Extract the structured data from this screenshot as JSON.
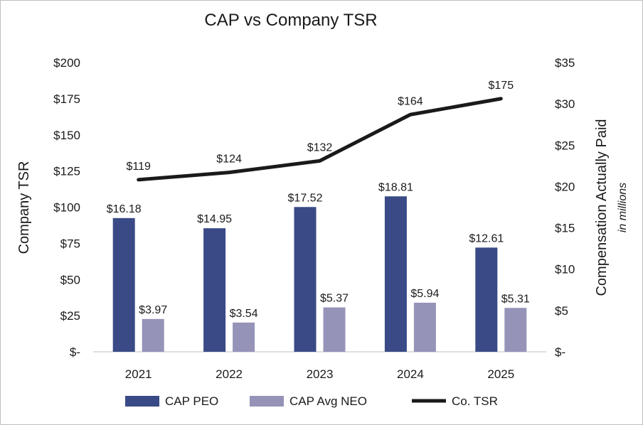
{
  "chart_data": {
    "type": "bar",
    "title": "CAP vs Company TSR",
    "categories": [
      "2021",
      "2022",
      "2023",
      "2024",
      "2025"
    ],
    "ylabel_left": "Company TSR",
    "ylabel_right": "Compensation Actually Paid",
    "ylabel_right_unit": "in millions",
    "ylim_left": [
      0,
      200
    ],
    "ylim_right": [
      0,
      35
    ],
    "left_ticks": [
      "$-",
      "$25",
      "$50",
      "$75",
      "$100",
      "$125",
      "$150",
      "$175",
      "$200"
    ],
    "right_ticks": [
      "$-",
      "$5",
      "$10",
      "$15",
      "$20",
      "$25",
      "$30",
      "$35"
    ],
    "grid": false,
    "legend_position": "bottom",
    "series": [
      {
        "name": "CAP PEO",
        "kind": "bar",
        "axis": "right",
        "color": "#3a4a86",
        "values": [
          16.18,
          14.95,
          17.52,
          18.81,
          12.61
        ],
        "labels": [
          "$16.18",
          "$14.95",
          "$17.52",
          "$18.81",
          "$12.61"
        ]
      },
      {
        "name": "CAP Avg NEO",
        "kind": "bar",
        "axis": "right",
        "color": "#9593b8",
        "values": [
          3.97,
          3.54,
          5.37,
          5.94,
          5.31
        ],
        "labels": [
          "$3.97",
          "$3.54",
          "$5.37",
          "$5.94",
          "$5.31"
        ]
      },
      {
        "name": "Co. TSR",
        "kind": "line",
        "axis": "left",
        "color": "#1a1a1a",
        "values": [
          119,
          124,
          132,
          164,
          175
        ],
        "labels": [
          "$119",
          "$124",
          "$132",
          "$164",
          "$175"
        ]
      }
    ]
  }
}
